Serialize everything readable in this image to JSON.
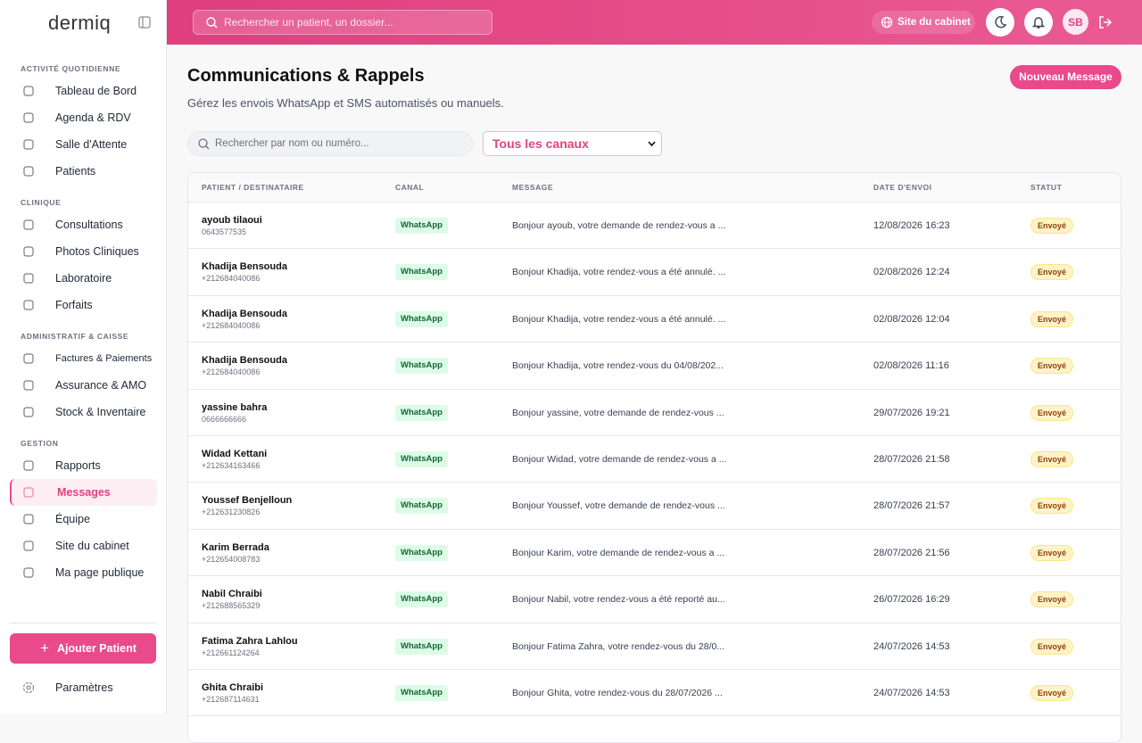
{
  "sidebar": {
    "logo": "dermiq",
    "sections": [
      {
        "title": "ACTIVITÉ QUOTIDIENNE",
        "items": [
          {
            "label": "Tableau de Bord"
          },
          {
            "label": "Agenda & RDV"
          },
          {
            "label": "Salle d'Attente"
          },
          {
            "label": "Patients"
          }
        ]
      },
      {
        "title": "CLINIQUE",
        "items": [
          {
            "label": "Consultations"
          },
          {
            "label": "Photos Cliniques"
          },
          {
            "label": "Laboratoire"
          },
          {
            "label": "Forfaits"
          }
        ]
      },
      {
        "title": "ADMINISTRATIF & CAISSE",
        "items": [
          {
            "label": "Factures & Paiements"
          },
          {
            "label": "Assurance & AMO"
          },
          {
            "label": "Stock & Inventaire"
          }
        ]
      },
      {
        "title": "GESTION",
        "items": [
          {
            "label": "Rapports"
          },
          {
            "label": "Messages",
            "active": true
          },
          {
            "label": "Équipe"
          },
          {
            "label": "Site du cabinet"
          },
          {
            "label": "Ma page publique"
          }
        ]
      }
    ],
    "add_button": "Ajouter Patient",
    "settings": "Paramètres"
  },
  "topbar": {
    "search_placeholder": "Rechercher un patient, un dossier...",
    "site_link": "Site du cabinet",
    "avatar": "SB"
  },
  "page": {
    "title": "Communications & Rappels",
    "subtitle": "Gérez les envois WhatsApp et SMS automatisés ou manuels.",
    "new_button": "Nouveau Message"
  },
  "filters": {
    "search_placeholder": "Rechercher par nom ou numéro...",
    "channel": "Tous les canaux"
  },
  "table": {
    "columns": [
      "PATIENT / DESTINATAIRE",
      "CANAL",
      "MESSAGE",
      "DATE D'ENVOI",
      "STATUT"
    ],
    "rows": [
      [
        "ayoub tilaoui",
        "0643577535",
        "WhatsApp",
        "Bonjour ayoub, votre demande de rendez-vous a ...",
        "12/08/2026 16:23",
        "Envoyé"
      ],
      [
        "Khadija Bensouda",
        "+212684040086",
        "WhatsApp",
        "Bonjour Khadija, votre rendez-vous a été annulé. ...",
        "02/08/2026 12:24",
        "Envoyé"
      ],
      [
        "Khadija Bensouda",
        "+212684040086",
        "WhatsApp",
        "Bonjour Khadija, votre rendez-vous a été annulé. ...",
        "02/08/2026 12:04",
        "Envoyé"
      ],
      [
        "Khadija Bensouda",
        "+212684040086",
        "WhatsApp",
        "Bonjour Khadija, votre rendez-vous du 04/08/202...",
        "02/08/2026 11:16",
        "Envoyé"
      ],
      [
        "yassine bahra",
        "0666666666",
        "WhatsApp",
        "Bonjour yassine, votre demande de rendez-vous ...",
        "29/07/2026 19:21",
        "Envoyé"
      ],
      [
        "Widad Kettani",
        "+212634163466",
        "WhatsApp",
        "Bonjour Widad, votre demande de rendez-vous a ...",
        "28/07/2026 21:58",
        "Envoyé"
      ],
      [
        "Youssef Benjelloun",
        "+212631230826",
        "WhatsApp",
        "Bonjour Youssef, votre demande de rendez-vous ...",
        "28/07/2026 21:57",
        "Envoyé"
      ],
      [
        "Karim Berrada",
        "+212654008783",
        "WhatsApp",
        "Bonjour Karim, votre demande de rendez-vous a ...",
        "28/07/2026 21:56",
        "Envoyé"
      ],
      [
        "Nabil Chraibi",
        "+212688565329",
        "WhatsApp",
        "Bonjour Nabil, votre rendez-vous a été reporté au...",
        "26/07/2026 16:29",
        "Envoyé"
      ],
      [
        "Fatima Zahra Lahlou",
        "+212661124264",
        "WhatsApp",
        "Bonjour Fatima Zahra, votre rendez-vous du 28/0...",
        "24/07/2026 14:53",
        "Envoyé"
      ],
      [
        "Ghita Chraibi",
        "+212687114631",
        "WhatsApp",
        "Bonjour Ghita, votre rendez-vous du 28/07/2026 ...",
        "24/07/2026 14:53",
        "Envoyé"
      ]
    ]
  }
}
